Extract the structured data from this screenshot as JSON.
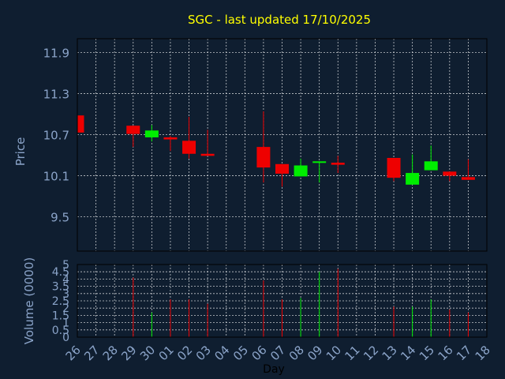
{
  "chart_data": {
    "type": "candlestick",
    "title": "SGC - last updated 17/10/2025",
    "ylabel": "Price",
    "volume_ylabel": "Volume (0000)",
    "xlabel": "Day",
    "grid": true,
    "x": [
      "26",
      "27",
      "28",
      "29",
      "30",
      "01",
      "02",
      "03",
      "04",
      "05",
      "06",
      "07",
      "08",
      "09",
      "10",
      "11",
      "12",
      "13",
      "14",
      "15",
      "16",
      "17",
      "18"
    ],
    "price_ylim": [
      9.0,
      12.1
    ],
    "price_ticks": [
      "9.5",
      "10.1",
      "10.7",
      "11.3",
      "11.9"
    ],
    "volume_ylim": [
      0,
      5
    ],
    "volume_ticks": [
      "0",
      "0.5",
      "1",
      "1.5",
      "2",
      "2.5",
      "3",
      "3.5",
      "4",
      "4.5",
      "5"
    ],
    "candles": [
      {
        "day": "26",
        "open": 10.98,
        "close": 10.73,
        "high": 10.98,
        "low": 10.73,
        "volume": 0
      },
      {
        "day": "29",
        "open": 10.83,
        "close": 10.71,
        "high": 10.83,
        "low": 10.52,
        "volume": 4.1
      },
      {
        "day": "30",
        "open": 10.66,
        "close": 10.76,
        "high": 10.84,
        "low": 10.6,
        "volume": 1.7
      },
      {
        "day": "01",
        "open": 10.66,
        "close": 10.63,
        "high": 10.68,
        "low": 10.46,
        "volume": 2.6
      },
      {
        "day": "02",
        "open": 10.61,
        "close": 10.42,
        "high": 10.96,
        "low": 10.35,
        "volume": 2.6
      },
      {
        "day": "03",
        "open": 10.42,
        "close": 10.39,
        "high": 10.77,
        "low": 10.39,
        "volume": 2.3
      },
      {
        "day": "06",
        "open": 10.52,
        "close": 10.22,
        "high": 11.04,
        "low": 10.0,
        "volume": 3.9
      },
      {
        "day": "07",
        "open": 10.27,
        "close": 10.13,
        "high": 10.27,
        "low": 9.94,
        "volume": 2.6
      },
      {
        "day": "08",
        "open": 10.09,
        "close": 10.25,
        "high": 10.35,
        "low": 10.09,
        "volume": 2.7
      },
      {
        "day": "09",
        "open": 10.29,
        "close": 10.31,
        "high": 10.31,
        "low": 10.0,
        "volume": 4.5
      },
      {
        "day": "10",
        "open": 10.29,
        "close": 10.26,
        "high": 10.39,
        "low": 10.14,
        "volume": 4.7
      },
      {
        "day": "13",
        "open": 10.36,
        "close": 10.07,
        "high": 10.36,
        "low": 10.02,
        "volume": 2.1
      },
      {
        "day": "14",
        "open": 9.97,
        "close": 10.14,
        "high": 10.41,
        "low": 9.97,
        "volume": 2.1
      },
      {
        "day": "15",
        "open": 10.18,
        "close": 10.31,
        "high": 10.54,
        "low": 10.18,
        "volume": 2.6
      },
      {
        "day": "16",
        "open": 10.16,
        "close": 10.1,
        "high": 10.16,
        "low": 10.02,
        "volume": 1.9
      },
      {
        "day": "17",
        "open": 10.08,
        "close": 10.04,
        "high": 10.34,
        "low": 10.04,
        "volume": 1.7
      }
    ],
    "colors": {
      "background": "#0f1e30",
      "up": "#00ee00",
      "down": "#ee0000",
      "axis_text": "#8ba4c9",
      "title": "#ffff00",
      "grid": "#ffffff",
      "xlabel": "#000000"
    }
  }
}
